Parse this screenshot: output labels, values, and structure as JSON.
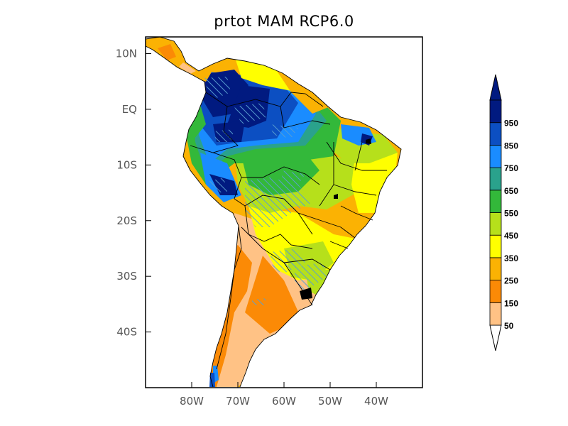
{
  "title": "prtot MAM RCP6.0",
  "map": {
    "lon_range": [
      -90,
      -30
    ],
    "lat_range": [
      -50,
      13
    ],
    "lat_ticks": [
      {
        "value": 10,
        "label": "10N"
      },
      {
        "value": 0,
        "label": "EQ"
      },
      {
        "value": -10,
        "label": "10S"
      },
      {
        "value": -20,
        "label": "20S"
      },
      {
        "value": -30,
        "label": "30S"
      },
      {
        "value": -40,
        "label": "40S"
      }
    ],
    "lon_ticks": [
      {
        "value": -80,
        "label": "80W"
      },
      {
        "value": -70,
        "label": "70W"
      },
      {
        "value": -60,
        "label": "60W"
      },
      {
        "value": -50,
        "label": "50W"
      },
      {
        "value": -40,
        "label": "40W"
      }
    ],
    "hatching": "significance stippling (diagonal hatch)"
  },
  "colorbar": {
    "labels": [
      "50",
      "150",
      "250",
      "350",
      "450",
      "550",
      "650",
      "750",
      "850",
      "950"
    ],
    "colors": [
      "#ffc285",
      "#fb8a06",
      "#fbb203",
      "#ffff00",
      "#b6e01b",
      "#33b83a",
      "#2aa28c",
      "#1a8cff",
      "#0c4fc2",
      "#011a80"
    ],
    "under_color": "#ffffff",
    "over_color": "#011a80"
  },
  "colors": {
    "ocean": "#ffffff",
    "border": "#000000",
    "hatch": "#5aa0d0"
  }
}
